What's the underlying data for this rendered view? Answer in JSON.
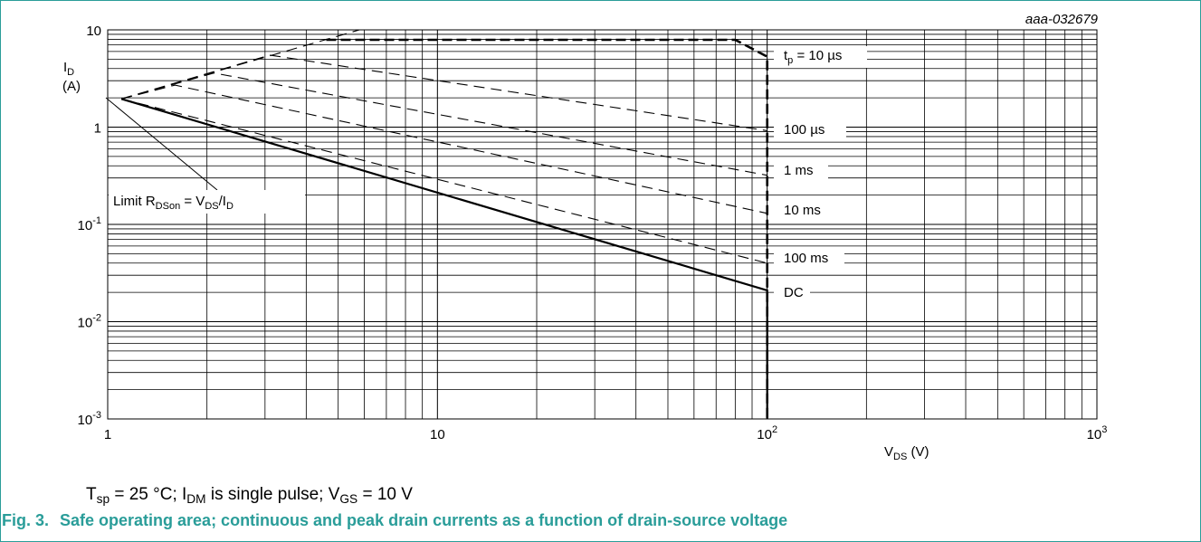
{
  "chart_data": {
    "type": "line",
    "id_label": "aaa-032679",
    "xlabel": {
      "main": "V",
      "sub": "DS",
      "unit": " (V)"
    },
    "ylabel": {
      "main": "I",
      "sub": "D",
      "unit": "(A)"
    },
    "x_scale": "log",
    "y_scale": "log",
    "xlim": [
      1,
      1000
    ],
    "ylim": [
      0.001,
      10
    ],
    "grid": true,
    "x_ticks": [
      {
        "value": 1,
        "base": "1",
        "exp": ""
      },
      {
        "value": 10,
        "base": "10",
        "exp": ""
      },
      {
        "value": 100,
        "base": "10",
        "exp": "2"
      },
      {
        "value": 1000,
        "base": "10",
        "exp": "3"
      }
    ],
    "y_ticks": [
      {
        "value": 10,
        "base": "10",
        "exp": ""
      },
      {
        "value": 1,
        "base": "1",
        "exp": ""
      },
      {
        "value": 0.1,
        "base": "10",
        "exp": "-1"
      },
      {
        "value": 0.01,
        "base": "10",
        "exp": "-2"
      },
      {
        "value": 0.001,
        "base": "10",
        "exp": "-3"
      }
    ],
    "series": [
      {
        "name": "DC",
        "style": "solid",
        "points": [
          [
            1.1,
            1.95
          ],
          [
            100,
            0.021
          ],
          [
            100,
            0.001
          ]
        ]
      },
      {
        "name": "100 ms",
        "style": "dashed",
        "points": [
          [
            1.1,
            1.95
          ],
          [
            100,
            0.04
          ]
        ]
      },
      {
        "name": "10 ms",
        "style": "dashed",
        "points": [
          [
            1.1,
            1.95
          ],
          [
            1.6,
            2.7
          ],
          [
            100,
            0.13
          ]
        ]
      },
      {
        "name": "1 ms",
        "style": "dashed",
        "points": [
          [
            1.1,
            1.95
          ],
          [
            2.1,
            3.6
          ],
          [
            100,
            0.32
          ]
        ]
      },
      {
        "name": "100 µs",
        "style": "dashed",
        "points": [
          [
            1.1,
            1.95
          ],
          [
            3.1,
            5.5
          ],
          [
            100,
            0.92
          ]
        ]
      },
      {
        "name": "t_p = 10 µs",
        "style": "dashed-bold",
        "points": [
          [
            4.6,
            7.9
          ],
          [
            80,
            7.9
          ],
          [
            100,
            5.3
          ],
          [
            100,
            0.001
          ]
        ]
      },
      {
        "name": "limit",
        "style": "dashed",
        "points": [
          [
            1.1,
            1.95
          ],
          [
            5.8,
            10
          ]
        ]
      }
    ],
    "annotations": {
      "rdson": {
        "pre": "Limit R",
        "sub1": "DSon",
        "mid": " = V",
        "sub2": "DS",
        "mid2": "/I",
        "sub3": "D"
      },
      "tp": {
        "pre": "t",
        "sub": "p",
        "post": " = 10 µs"
      },
      "us100": "100 µs",
      "ms1": "1 ms",
      "ms10": "10 ms",
      "ms100": "100 ms",
      "dc": "DC"
    }
  },
  "note": {
    "t": "T",
    "t_sub": "sp",
    "t_post": " = 25 °C; I",
    "i_sub": "DM",
    "i_post": " is single pulse; V",
    "v_sub": "GS",
    "v_post": " = 10 V"
  },
  "caption": {
    "number": "Fig. 3.",
    "text": "Safe operating area; continuous and peak drain currents as a function of drain-source voltage"
  }
}
